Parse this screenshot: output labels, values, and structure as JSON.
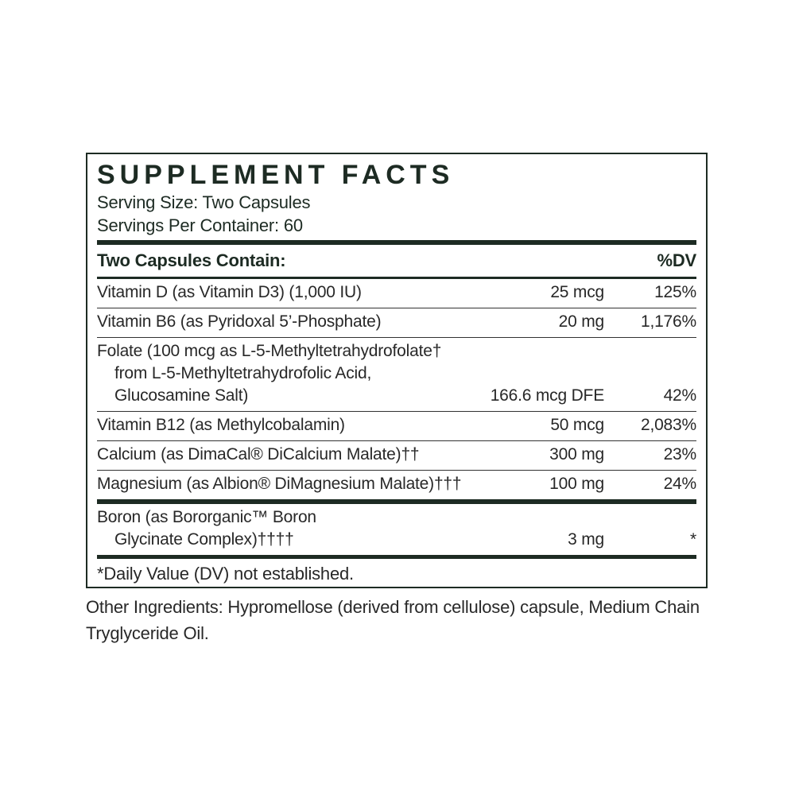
{
  "accent_color": "#1d2b23",
  "panel": {
    "title": "SUPPLEMENT FACTS",
    "serving_size": "Serving Size: Two Capsules",
    "servings_per_container": "Servings Per Container: 60",
    "columns": {
      "contain": "Two Capsules Contain:",
      "dv": "%DV"
    },
    "rows_main": [
      {
        "name_lines": [
          "Vitamin D (as Vitamin D3) (1,000 IU)"
        ],
        "amount": "25 mcg",
        "dv": "125%"
      },
      {
        "name_lines": [
          "Vitamin B6 (as Pyridoxal 5’-Phosphate)"
        ],
        "amount": "20 mg",
        "dv": "1,176%"
      },
      {
        "name_lines": [
          "Folate (100 mcg as L-5-Methyltetrahydrofolate†",
          "from L-5-Methyltetrahydrofolic Acid,",
          "Glucosamine Salt)"
        ],
        "amount": "166.6 mcg DFE",
        "dv": "42%"
      },
      {
        "name_lines": [
          "Vitamin B12 (as Methylcobalamin)"
        ],
        "amount": "50 mcg",
        "dv": "2,083%"
      },
      {
        "name_lines": [
          "Calcium (as DimaCal® DiCalcium Malate)††"
        ],
        "amount": "300 mg",
        "dv": "23%"
      },
      {
        "name_lines": [
          "Magnesium (as Albion® DiMagnesium Malate)†††"
        ],
        "amount": "100 mg",
        "dv": "24%"
      }
    ],
    "rows_no_dv": [
      {
        "name_lines": [
          "Boron (as Bororganic™ Boron",
          "Glycinate Complex)††††"
        ],
        "amount": "3 mg",
        "dv": "*"
      }
    ],
    "footnote": "*Daily Value (DV) not established."
  },
  "other_ingredients": {
    "line1": "Other Ingredients: Hypromellose (derived from cellulose) capsule, Medium Chain",
    "line2": "Tryglyceride Oil."
  }
}
